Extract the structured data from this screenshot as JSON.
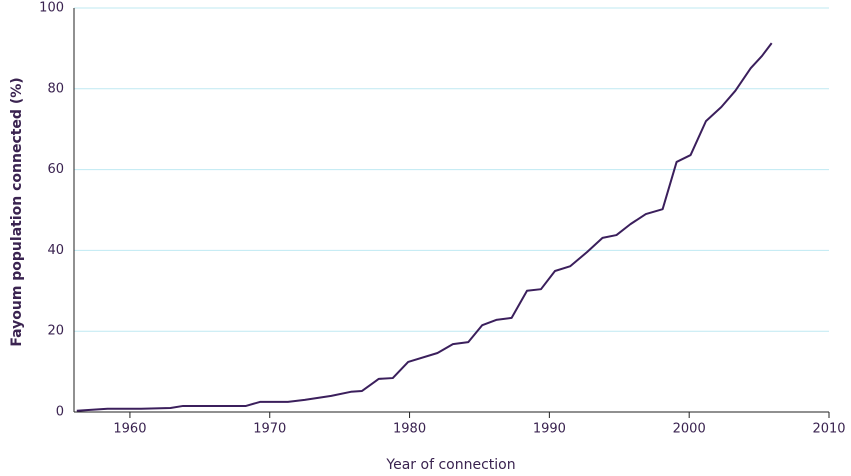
{
  "chart_data": {
    "type": "line",
    "x_label": "Year of connection",
    "y_label": "Fayoum population connected (%)",
    "series": [
      {
        "name": "Fayoum",
        "color": "#3b1f5c",
        "x": [
          1956.2,
          1958.4,
          1959.5,
          1960.8,
          1962.9,
          1963.8,
          1968.3,
          1969.3,
          1971.3,
          1972.5,
          1974.4,
          1975.8,
          1976.6,
          1977.8,
          1978.8,
          1979.9,
          1982.0,
          1983.1,
          1984.2,
          1985.2,
          1986.2,
          1987.3,
          1988.4,
          1989.4,
          1990.4,
          1991.5,
          1992.7,
          1993.8,
          1994.8,
          1995.8,
          1996.9,
          1998.1,
          1999.1,
          2000.1,
          2001.2,
          2002.3,
          2003.3,
          2004.4,
          2005.2,
          2005.9
        ],
        "values": [
          0.3,
          0.8,
          0.8,
          0.8,
          1.0,
          1.5,
          1.5,
          2.5,
          2.5,
          3.0,
          4.0,
          5.0,
          5.2,
          8.2,
          8.4,
          12.4,
          14.6,
          16.8,
          17.3,
          21.5,
          22.8,
          23.3,
          30.0,
          30.4,
          34.9,
          36.1,
          39.6,
          43.1,
          43.8,
          46.5,
          49.0,
          50.2,
          61.9,
          63.6,
          72.0,
          75.5,
          79.5,
          85.1,
          88.1,
          91.3
        ]
      }
    ],
    "xlim": [
      1956,
      2010
    ],
    "xticks": [
      1960,
      1970,
      1980,
      1990,
      2000,
      2010
    ],
    "ylim": [
      0,
      100
    ],
    "yticks": [
      0,
      20,
      40,
      60,
      80,
      100
    ],
    "grid": true,
    "grid_color": "#bfe9f2"
  }
}
